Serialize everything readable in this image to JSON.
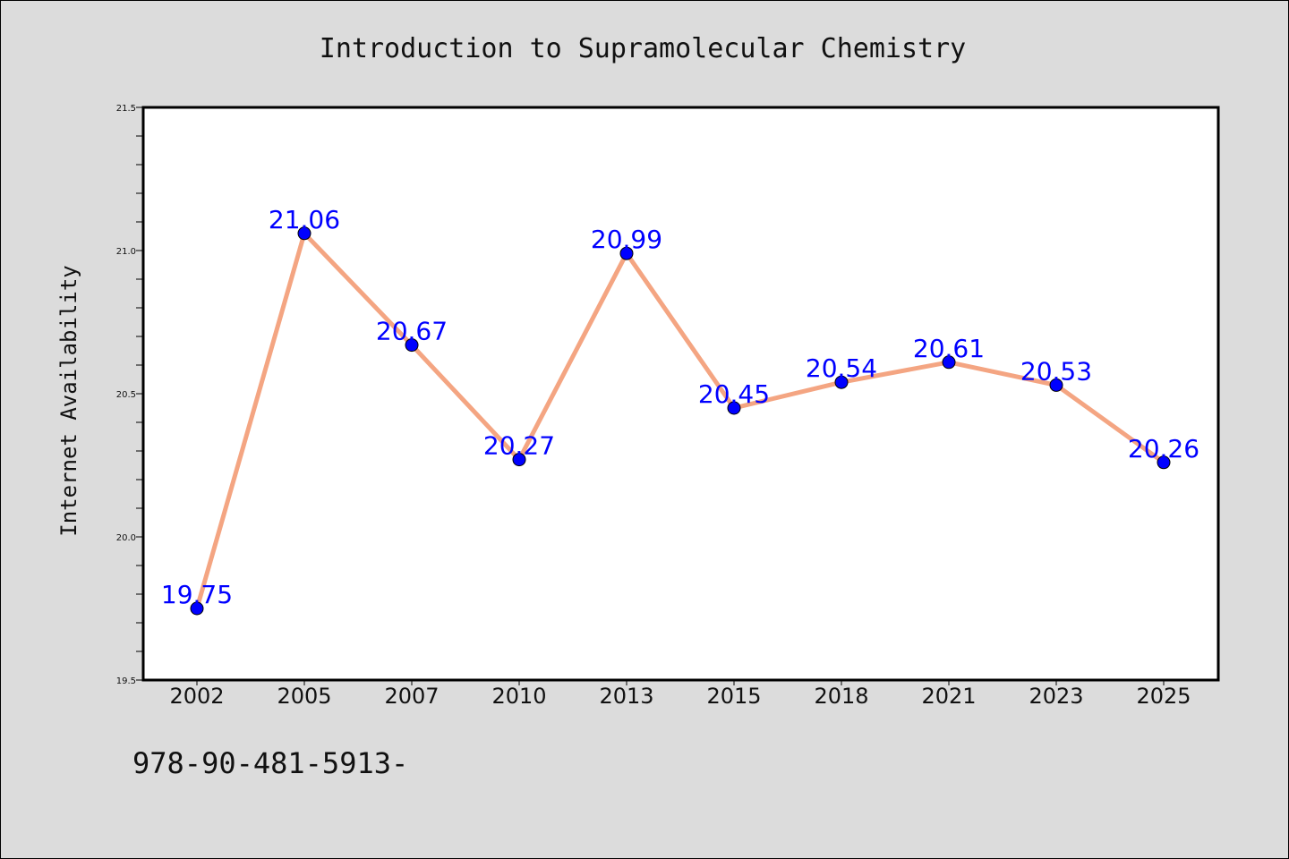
{
  "chart_data": {
    "type": "line",
    "title": "Introduction to Supramolecular Chemistry",
    "xlabel": "",
    "ylabel": "Internet Availability",
    "categories": [
      "2002",
      "2005",
      "2007",
      "2010",
      "2013",
      "2015",
      "2018",
      "2021",
      "2023",
      "2025"
    ],
    "values": [
      19.75,
      21.06,
      20.67,
      20.27,
      20.99,
      20.45,
      20.54,
      20.61,
      20.53,
      20.26
    ],
    "ylim": [
      19.5,
      21.5
    ],
    "yticks": [
      "19.5",
      "20.0",
      "20.5",
      "21.0",
      "21.5"
    ],
    "grid": false,
    "line_color": "#f4a582",
    "marker_color": "#0000ff",
    "label_color": "#0000ff"
  },
  "footer_text": "978-90-481-5913-",
  "colors": {
    "background": "#dcdcdc",
    "plot_background": "#ffffff"
  }
}
